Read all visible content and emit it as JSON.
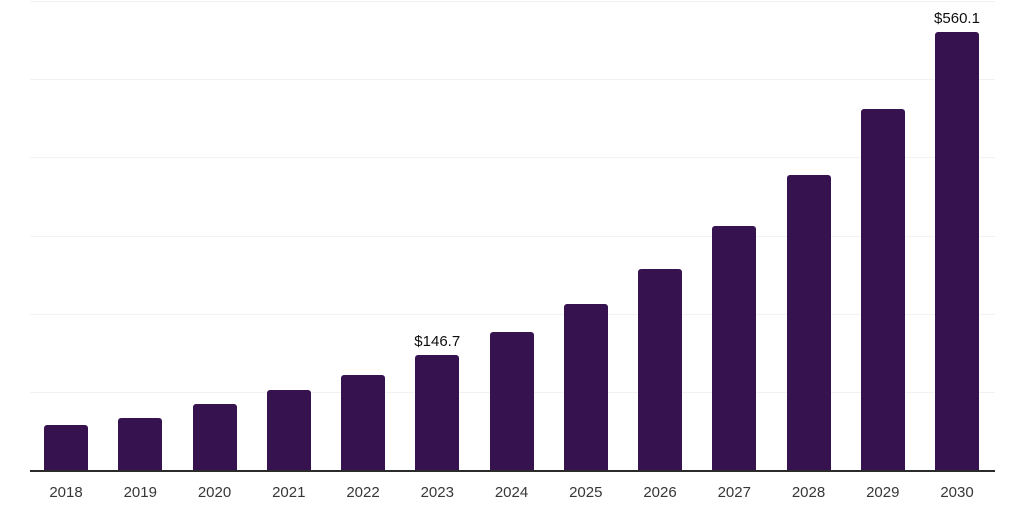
{
  "chart_data": {
    "type": "bar",
    "title": "",
    "xlabel": "",
    "ylabel": "",
    "categories": [
      "2018",
      "2019",
      "2020",
      "2021",
      "2022",
      "2023",
      "2024",
      "2025",
      "2026",
      "2027",
      "2028",
      "2029",
      "2030"
    ],
    "values": [
      57,
      67,
      85,
      102,
      122,
      146.7,
      177,
      213,
      257,
      312,
      378,
      462,
      560.1
    ],
    "data_labels": [
      "",
      "",
      "",
      "",
      "",
      "$146.7",
      "",
      "",
      "",
      "",
      "",
      "",
      "$560.1"
    ],
    "ylim": [
      0,
      600
    ],
    "gridline_interval": 100,
    "grid": true,
    "legend_position": "none",
    "y_axis_labels_visible": false,
    "colors": {
      "bar": "#36124E",
      "axis_line": "#2B2B2B",
      "gridline": "#F2F2F2",
      "tick_label": "#373737",
      "data_label": "#0E0E0E",
      "background": "#FFFFFF"
    }
  }
}
